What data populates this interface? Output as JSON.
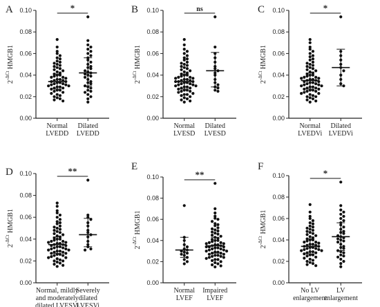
{
  "chart_data": [
    {
      "type": "scatter",
      "panel_label": "A",
      "ylabel": "2^-ΔCt HMGB1",
      "ylim": [
        0,
        0.1
      ],
      "yticks": [
        "0.00",
        "0.02",
        "0.04",
        "0.06",
        "0.08",
        "0.10"
      ],
      "categories": [
        [
          "Normal",
          "LVEDD"
        ],
        [
          "Dilated",
          "LVEDD"
        ]
      ],
      "significance": "*",
      "series": [
        {
          "values": [
            0.073,
            0.066,
            0.062,
            0.06,
            0.058,
            0.056,
            0.055,
            0.053,
            0.052,
            0.051,
            0.05,
            0.049,
            0.048,
            0.047,
            0.046,
            0.045,
            0.044,
            0.043,
            0.042,
            0.041,
            0.04,
            0.04,
            0.039,
            0.038,
            0.038,
            0.037,
            0.036,
            0.036,
            0.035,
            0.035,
            0.034,
            0.034,
            0.033,
            0.033,
            0.032,
            0.032,
            0.031,
            0.031,
            0.03,
            0.03,
            0.029,
            0.029,
            0.028,
            0.028,
            0.027,
            0.026,
            0.026,
            0.025,
            0.024,
            0.023,
            0.022,
            0.021,
            0.02,
            0.019,
            0.018,
            0.017,
            0.016
          ],
          "median": 0.034,
          "q1": 0.027,
          "q3": 0.041
        },
        {
          "values": [
            0.094,
            0.072,
            0.068,
            0.066,
            0.064,
            0.062,
            0.06,
            0.058,
            0.056,
            0.054,
            0.052,
            0.05,
            0.048,
            0.047,
            0.046,
            0.044,
            0.043,
            0.042,
            0.041,
            0.04,
            0.039,
            0.038,
            0.036,
            0.034,
            0.033,
            0.032,
            0.03,
            0.029,
            0.028,
            0.026,
            0.025,
            0.024,
            0.022,
            0.02,
            0.018,
            0.015
          ],
          "median": 0.042,
          "q1": 0.03,
          "q3": 0.056
        }
      ]
    },
    {
      "type": "scatter",
      "panel_label": "B",
      "ylabel": "2^-ΔCt HMGB1",
      "ylim": [
        0,
        0.1
      ],
      "yticks": [
        "0.00",
        "0.02",
        "0.04",
        "0.06",
        "0.08",
        "0.10"
      ],
      "categories": [
        [
          "Normal",
          "LVESD"
        ],
        [
          "Dilated",
          "LVESD"
        ]
      ],
      "significance": "ns",
      "series": [
        {
          "values": [
            0.073,
            0.068,
            0.064,
            0.062,
            0.06,
            0.058,
            0.056,
            0.055,
            0.054,
            0.052,
            0.051,
            0.05,
            0.049,
            0.048,
            0.047,
            0.046,
            0.045,
            0.044,
            0.043,
            0.042,
            0.041,
            0.04,
            0.04,
            0.039,
            0.038,
            0.038,
            0.037,
            0.037,
            0.036,
            0.036,
            0.035,
            0.035,
            0.034,
            0.034,
            0.034,
            0.033,
            0.033,
            0.032,
            0.032,
            0.031,
            0.031,
            0.03,
            0.03,
            0.029,
            0.029,
            0.028,
            0.028,
            0.027,
            0.026,
            0.026,
            0.025,
            0.025,
            0.024,
            0.023,
            0.022,
            0.022,
            0.021,
            0.02,
            0.019,
            0.018,
            0.017,
            0.016,
            0.015
          ],
          "median": 0.034,
          "q1": 0.027,
          "q3": 0.041
        },
        {
          "values": [
            0.094,
            0.066,
            0.06,
            0.056,
            0.052,
            0.048,
            0.046,
            0.044,
            0.042,
            0.04,
            0.036,
            0.033,
            0.031,
            0.029,
            0.028,
            0.026,
            0.025
          ],
          "median": 0.044,
          "q1": 0.029,
          "q3": 0.061
        }
      ]
    },
    {
      "type": "scatter",
      "panel_label": "C",
      "ylabel": "2^-ΔCt HMGB1",
      "ylim": [
        0,
        0.1
      ],
      "yticks": [
        "0.00",
        "0.02",
        "0.04",
        "0.06",
        "0.08",
        "0.10"
      ],
      "categories": [
        [
          "Normal",
          "LVEDVi"
        ],
        [
          "Dilated",
          "LVEDVi"
        ]
      ],
      "significance": "*",
      "series": [
        {
          "values": [
            0.073,
            0.07,
            0.066,
            0.064,
            0.062,
            0.06,
            0.058,
            0.057,
            0.055,
            0.054,
            0.052,
            0.051,
            0.05,
            0.049,
            0.048,
            0.047,
            0.046,
            0.045,
            0.044,
            0.043,
            0.042,
            0.041,
            0.04,
            0.04,
            0.039,
            0.038,
            0.038,
            0.037,
            0.037,
            0.036,
            0.036,
            0.035,
            0.035,
            0.034,
            0.034,
            0.033,
            0.033,
            0.032,
            0.032,
            0.031,
            0.031,
            0.03,
            0.03,
            0.029,
            0.029,
            0.028,
            0.028,
            0.027,
            0.027,
            0.026,
            0.026,
            0.025,
            0.025,
            0.024,
            0.023,
            0.023,
            0.022,
            0.021,
            0.02,
            0.02,
            0.019,
            0.018,
            0.017,
            0.016,
            0.015
          ],
          "median": 0.035,
          "q1": 0.027,
          "q3": 0.042
        },
        {
          "values": [
            0.094,
            0.062,
            0.058,
            0.054,
            0.05,
            0.047,
            0.044,
            0.04,
            0.036,
            0.032,
            0.03
          ],
          "median": 0.047,
          "q1": 0.03,
          "q3": 0.064
        }
      ]
    },
    {
      "type": "scatter",
      "panel_label": "D",
      "ylabel": "2^-ΔCt HMGB1",
      "ylim": [
        0,
        0.1
      ],
      "yticks": [
        "0.00",
        "0.02",
        "0.04",
        "0.06",
        "0.08",
        "0.10"
      ],
      "categories": [
        [
          "Normal, mildly",
          "and moderately",
          "dilated LVESVi"
        ],
        [
          "Severely",
          "dilated",
          "LVESVi"
        ]
      ],
      "significance": "**",
      "series": [
        {
          "values": [
            0.073,
            0.07,
            0.066,
            0.064,
            0.062,
            0.06,
            0.058,
            0.056,
            0.055,
            0.054,
            0.052,
            0.051,
            0.05,
            0.049,
            0.048,
            0.047,
            0.046,
            0.045,
            0.044,
            0.043,
            0.042,
            0.041,
            0.04,
            0.04,
            0.039,
            0.038,
            0.038,
            0.037,
            0.037,
            0.036,
            0.036,
            0.035,
            0.035,
            0.034,
            0.034,
            0.033,
            0.033,
            0.032,
            0.032,
            0.031,
            0.031,
            0.03,
            0.03,
            0.029,
            0.029,
            0.028,
            0.028,
            0.027,
            0.027,
            0.026,
            0.026,
            0.025,
            0.025,
            0.024,
            0.023,
            0.023,
            0.022,
            0.021,
            0.02,
            0.02,
            0.019,
            0.018,
            0.017,
            0.016,
            0.015
          ],
          "median": 0.035,
          "q1": 0.027,
          "q3": 0.042
        },
        {
          "values": [
            0.094,
            0.062,
            0.06,
            0.058,
            0.055,
            0.052,
            0.048,
            0.046,
            0.044,
            0.042,
            0.038,
            0.035,
            0.033,
            0.031,
            0.03
          ],
          "median": 0.044,
          "q1": 0.033,
          "q3": 0.059
        }
      ]
    },
    {
      "type": "scatter",
      "panel_label": "E",
      "ylabel": "2^-ΔCt HMGB1",
      "ylim": [
        0,
        0.1
      ],
      "yticks": [
        "0.00",
        "0.02",
        "0.04",
        "0.06",
        "0.08",
        "0.10"
      ],
      "categories": [
        [
          "Normal",
          "LVEF"
        ],
        [
          "Impaired",
          "LVEF"
        ]
      ],
      "significance": "**",
      "series": [
        {
          "values": [
            0.073,
            0.043,
            0.04,
            0.036,
            0.034,
            0.032,
            0.031,
            0.03,
            0.029,
            0.028,
            0.027,
            0.026,
            0.024,
            0.022,
            0.02,
            0.018
          ],
          "median": 0.031,
          "q1": 0.024,
          "q3": 0.043
        },
        {
          "values": [
            0.094,
            0.07,
            0.066,
            0.063,
            0.061,
            0.06,
            0.058,
            0.056,
            0.055,
            0.054,
            0.052,
            0.051,
            0.05,
            0.049,
            0.048,
            0.047,
            0.046,
            0.045,
            0.044,
            0.043,
            0.042,
            0.041,
            0.04,
            0.04,
            0.039,
            0.038,
            0.038,
            0.037,
            0.037,
            0.036,
            0.036,
            0.035,
            0.035,
            0.034,
            0.034,
            0.034,
            0.033,
            0.033,
            0.032,
            0.032,
            0.031,
            0.031,
            0.03,
            0.03,
            0.029,
            0.029,
            0.028,
            0.028,
            0.027,
            0.027,
            0.026,
            0.026,
            0.025,
            0.025,
            0.024,
            0.024,
            0.023,
            0.022,
            0.022,
            0.021,
            0.02,
            0.019,
            0.018,
            0.017,
            0.016,
            0.015
          ],
          "median": 0.035,
          "q1": 0.028,
          "q3": 0.043
        }
      ]
    },
    {
      "type": "scatter",
      "panel_label": "F",
      "ylabel": "2^-ΔCt HMGB1",
      "ylim": [
        0,
        0.1
      ],
      "yticks": [
        "0.00",
        "0.02",
        "0.04",
        "0.06",
        "0.08",
        "0.10"
      ],
      "categories": [
        [
          "No LV",
          "enlargement"
        ],
        [
          "LV",
          "enlargement"
        ]
      ],
      "significance": "*",
      "series": [
        {
          "values": [
            0.073,
            0.066,
            0.062,
            0.06,
            0.058,
            0.056,
            0.055,
            0.053,
            0.052,
            0.051,
            0.05,
            0.049,
            0.048,
            0.047,
            0.046,
            0.045,
            0.044,
            0.043,
            0.042,
            0.041,
            0.04,
            0.04,
            0.039,
            0.038,
            0.038,
            0.037,
            0.036,
            0.036,
            0.035,
            0.035,
            0.034,
            0.034,
            0.033,
            0.033,
            0.032,
            0.032,
            0.031,
            0.031,
            0.03,
            0.03,
            0.029,
            0.029,
            0.028,
            0.028,
            0.027,
            0.026,
            0.026,
            0.025,
            0.024,
            0.023,
            0.022,
            0.021,
            0.02,
            0.019,
            0.018,
            0.017,
            0.016
          ],
          "median": 0.034,
          "q1": 0.027,
          "q3": 0.041
        },
        {
          "values": [
            0.094,
            0.072,
            0.068,
            0.066,
            0.064,
            0.062,
            0.06,
            0.058,
            0.056,
            0.054,
            0.052,
            0.05,
            0.048,
            0.047,
            0.046,
            0.044,
            0.043,
            0.042,
            0.041,
            0.04,
            0.039,
            0.038,
            0.036,
            0.034,
            0.033,
            0.032,
            0.03,
            0.029,
            0.028,
            0.026,
            0.025,
            0.024,
            0.022,
            0.02,
            0.018,
            0.015
          ],
          "median": 0.043,
          "q1": 0.03,
          "q3": 0.056
        }
      ]
    }
  ]
}
